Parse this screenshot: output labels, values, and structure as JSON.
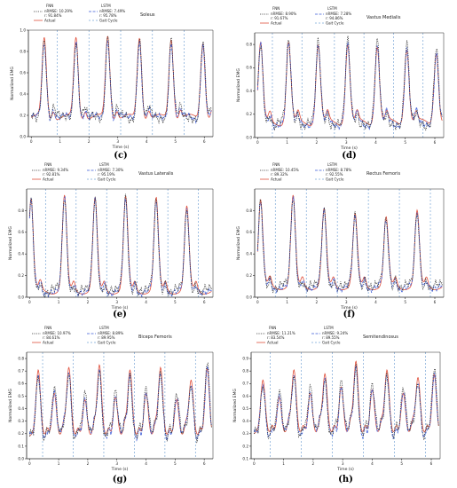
{
  "panel_labels": [
    "(c)",
    "(d)",
    "(e)",
    "(f)",
    "(g)",
    "(h)"
  ],
  "chart_data": [
    {
      "type": "line",
      "title": "Soleus",
      "xlabel": "Time (s)",
      "ylabel": "Normalized EMG",
      "xlim": [
        -0.1,
        6.3
      ],
      "ylim": [
        0,
        1.0
      ],
      "yticks": [
        0.0,
        0.2,
        0.4,
        0.6,
        0.8,
        1.0
      ],
      "xticks": [
        0,
        1,
        2,
        3,
        4,
        5,
        6
      ],
      "gait_cycle_lines": [
        0.9,
        2.0,
        3.1,
        4.2,
        5.3
      ],
      "peaks": [
        0.45,
        1.55,
        2.65,
        3.75,
        4.85,
        5.95
      ],
      "peak_heights": [
        0.92,
        0.93,
        0.95,
        0.94,
        0.93,
        0.9
      ],
      "baseline": 0.18,
      "legend": {
        "fnn_name": "FNN",
        "fnn_metrics": [
          "nRMSE: 10.29%",
          "r: 91.84%"
        ],
        "lstm_name": "LSTM",
        "lstm_metrics": [
          "nRMSE: 7.49%",
          "r: 95.78%"
        ],
        "actual": "Actual",
        "gait": "Gait Cycle"
      },
      "series": [
        {
          "name": "FNN"
        },
        {
          "name": "LSTM"
        },
        {
          "name": "Actual"
        }
      ]
    },
    {
      "type": "line",
      "title": "Vastus Medialis",
      "xlabel": "Time (s)",
      "ylabel": "Normalized EMG",
      "xlim": [
        -0.1,
        6.3
      ],
      "ylim": [
        0,
        0.9
      ],
      "yticks": [
        0.0,
        0.2,
        0.4,
        0.6,
        0.8
      ],
      "xticks": [
        0,
        1,
        2,
        3,
        4,
        5,
        6
      ],
      "gait_cycle_lines": [
        0.5,
        1.5,
        2.6,
        3.6,
        4.6,
        5.6
      ],
      "peaks": [
        0.1,
        1.05,
        2.05,
        3.05,
        4.05,
        5.05,
        6.05
      ],
      "peak_heights": [
        0.8,
        0.82,
        0.8,
        0.81,
        0.8,
        0.78,
        0.75
      ],
      "baseline": 0.13,
      "legend": {
        "fnn_name": "FNN",
        "fnn_metrics": [
          "nRMSE: 8.90%",
          "r: 91.67%"
        ],
        "lstm_name": "LSTM",
        "lstm_metrics": [
          "nRMSE: 7.28%",
          "r: 94.86%"
        ],
        "actual": "Actual",
        "gait": "Gait Cycle"
      },
      "series": [
        {
          "name": "FNN"
        },
        {
          "name": "LSTM"
        },
        {
          "name": "Actual"
        }
      ]
    },
    {
      "type": "line",
      "title": "Vastus Lateralis",
      "xlabel": "Time (s)",
      "ylabel": "Normalized EMG",
      "xlim": [
        -0.1,
        6.3
      ],
      "ylim": [
        0,
        1.0
      ],
      "yticks": [
        0.0,
        0.2,
        0.4,
        0.6,
        0.8
      ],
      "xticks": [
        0,
        1,
        2,
        3,
        4,
        5,
        6
      ],
      "gait_cycle_lines": [
        0.55,
        1.6,
        2.65,
        3.7,
        4.75,
        5.8
      ],
      "peaks": [
        0.05,
        1.2,
        2.25,
        3.3,
        4.35,
        5.4
      ],
      "peak_heights": [
        0.9,
        0.92,
        0.9,
        0.91,
        0.9,
        0.82
      ],
      "baseline": 0.06,
      "legend": {
        "fnn_name": "FNN",
        "fnn_metrics": [
          "nRMSE: 9.34%",
          "r: 92.81%"
        ],
        "lstm_name": "LSTM",
        "lstm_metrics": [
          "nRMSE: 7.30%",
          "r: 95.19%"
        ],
        "actual": "Actual",
        "gait": "Gait Cycle"
      },
      "series": [
        {
          "name": "FNN"
        },
        {
          "name": "LSTM"
        },
        {
          "name": "Actual"
        }
      ]
    },
    {
      "type": "line",
      "title": "Rectus Femoris",
      "xlabel": "Time (s)",
      "ylabel": "Normalized EMG",
      "xlim": [
        -0.1,
        6.3
      ],
      "ylim": [
        0,
        1.0
      ],
      "yticks": [
        0.0,
        0.2,
        0.4,
        0.6,
        0.8
      ],
      "xticks": [
        0,
        1,
        2,
        3,
        4,
        5,
        6
      ],
      "gait_cycle_lines": [
        0.6,
        1.65,
        2.7,
        3.75,
        4.8,
        5.85
      ],
      "peaks": [
        0.1,
        1.2,
        2.25,
        3.3,
        4.35,
        5.4
      ],
      "peak_heights": [
        0.88,
        0.92,
        0.8,
        0.75,
        0.72,
        0.78
      ],
      "baseline": 0.1,
      "legend": {
        "fnn_name": "FNN",
        "fnn_metrics": [
          "nRMSE: 10.45%",
          "r: 89.32%"
        ],
        "lstm_name": "LSTM",
        "lstm_metrics": [
          "nRMSE: 8.78%",
          "r: 92.55%"
        ],
        "actual": "Actual",
        "gait": "Gait Cycle"
      },
      "series": [
        {
          "name": "FNN"
        },
        {
          "name": "LSTM"
        },
        {
          "name": "Actual"
        }
      ]
    },
    {
      "type": "line",
      "title": "Biceps Femoris",
      "xlabel": "Time (s)",
      "ylabel": "Normalized EMG",
      "xlim": [
        -0.1,
        6.3
      ],
      "ylim": [
        0,
        0.85
      ],
      "yticks": [
        0.0,
        0.1,
        0.2,
        0.3,
        0.4,
        0.5,
        0.6,
        0.7,
        0.8
      ],
      "xticks": [
        0,
        1,
        2,
        3,
        4,
        5,
        6
      ],
      "gait_cycle_lines": [
        0.45,
        1.5,
        2.55,
        3.6,
        4.65,
        5.7
      ],
      "peaks": [
        0.3,
        0.85,
        1.35,
        1.9,
        2.4,
        2.95,
        3.45,
        4.0,
        4.5,
        5.05,
        5.55,
        6.1
      ],
      "peak_heights": [
        0.68,
        0.55,
        0.7,
        0.5,
        0.72,
        0.52,
        0.68,
        0.55,
        0.7,
        0.5,
        0.6,
        0.75
      ],
      "baseline": 0.18,
      "legend": {
        "fnn_name": "FNN",
        "fnn_metrics": [
          "nRMSE: 10.97%",
          "r: 84.61%"
        ],
        "lstm_name": "LSTM",
        "lstm_metrics": [
          "nRMSE: 8.89%",
          "r: 89.95%"
        ],
        "actual": "Actual",
        "gait": "Gait Cycle"
      },
      "series": [
        {
          "name": "FNN"
        },
        {
          "name": "LSTM"
        },
        {
          "name": "Actual"
        }
      ]
    },
    {
      "type": "line",
      "title": "Semitendinosus",
      "xlabel": "Time (s)",
      "ylabel": "Normalized EMG",
      "xlim": [
        -0.1,
        6.3
      ],
      "ylim": [
        0.1,
        0.95
      ],
      "yticks": [
        0.1,
        0.2,
        0.3,
        0.4,
        0.5,
        0.6,
        0.7,
        0.8,
        0.9
      ],
      "xticks": [
        0,
        1,
        2,
        3,
        4,
        5,
        6
      ],
      "gait_cycle_lines": [
        0.55,
        1.6,
        2.65,
        3.7,
        4.75,
        5.8
      ],
      "peaks": [
        0.3,
        0.85,
        1.35,
        1.9,
        2.4,
        2.95,
        3.45,
        4.0,
        4.5,
        5.05,
        5.55,
        6.1
      ],
      "peak_heights": [
        0.7,
        0.62,
        0.78,
        0.65,
        0.75,
        0.7,
        0.85,
        0.68,
        0.78,
        0.65,
        0.72,
        0.8
      ],
      "baseline": 0.3,
      "legend": {
        "fnn_name": "FNN",
        "fnn_metrics": [
          "nRMSE: 11.21%",
          "r: 83.54%"
        ],
        "lstm_name": "LSTM",
        "lstm_metrics": [
          "nRMSE: 9.24%",
          "r: 89.55%"
        ],
        "actual": "Actual",
        "gait": "Gait Cycle"
      },
      "series": [
        {
          "name": "FNN"
        },
        {
          "name": "LSTM"
        },
        {
          "name": "Actual"
        }
      ]
    }
  ],
  "colors": {
    "fnn": "#333333",
    "lstm": "#3b5bd6",
    "actual": "#e0503c",
    "gait": "#7aa6d6",
    "axis": "#222222",
    "text": "#222222"
  }
}
